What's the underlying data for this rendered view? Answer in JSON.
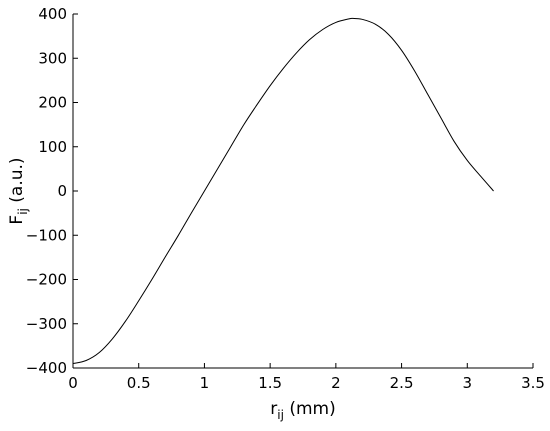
{
  "chart_data": {
    "type": "line",
    "title": "",
    "xlabel": {
      "main": "r",
      "sub": "ij",
      "unit": " (mm)"
    },
    "ylabel": {
      "main": "F",
      "sub": "ij",
      "unit": " (a.u.)"
    },
    "xlim": [
      0,
      3.5
    ],
    "ylim": [
      -400,
      400
    ],
    "xticks": [
      0,
      0.5,
      1,
      1.5,
      2,
      2.5,
      3,
      3.5
    ],
    "xtick_labels": [
      "0",
      "0.5",
      "1",
      "1.5",
      "2",
      "2.5",
      "3",
      "3.5"
    ],
    "yticks": [
      -400,
      -300,
      -200,
      -100,
      0,
      100,
      200,
      300,
      400
    ],
    "ytick_labels": [
      "−400",
      "−300",
      "−200",
      "−100",
      "0",
      "100",
      "200",
      "300",
      "400"
    ],
    "grid": false,
    "series": [
      {
        "x": [
          0,
          0.1,
          0.2,
          0.3,
          0.4,
          0.5,
          0.6,
          0.7,
          0.8,
          0.9,
          1.0,
          1.1,
          1.2,
          1.3,
          1.4,
          1.5,
          1.6,
          1.7,
          1.8,
          1.9,
          2.0,
          2.1,
          2.13,
          2.2,
          2.3,
          2.4,
          2.5,
          2.6,
          2.7,
          2.8,
          2.9,
          3.0,
          3.1,
          3.2
        ],
        "y": [
          -390,
          -383,
          -365,
          -334,
          -294,
          -248,
          -200,
          -150,
          -101,
          -50,
          0,
          50,
          100,
          150,
          195,
          238,
          277,
          312,
          342,
          365,
          381,
          389,
          390,
          388,
          377,
          354,
          318,
          271,
          218,
          165,
          112,
          69,
          34,
          0
        ]
      }
    ]
  }
}
